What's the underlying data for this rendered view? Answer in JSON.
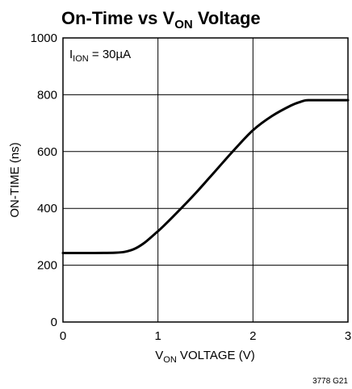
{
  "chart_data": {
    "type": "line",
    "title_main": "On-Time vs V",
    "title_sub": "ON",
    "title_tail": " Voltage",
    "xlabel_main": "V",
    "xlabel_sub": "ON",
    "xlabel_tail": " VOLTAGE (V)",
    "ylabel": "ON-TIME (ns)",
    "annotation_main": "I",
    "annotation_sub": "ION",
    "annotation_tail": " = 30µA",
    "figure_code": "3778 G21",
    "xlim": [
      0,
      3
    ],
    "ylim": [
      0,
      1000
    ],
    "xticks": [
      "0",
      "1",
      "2",
      "3"
    ],
    "yticks": [
      "0",
      "200",
      "400",
      "600",
      "800",
      "1000"
    ],
    "grid": true,
    "series": [
      {
        "x": [
          0,
          0.3,
          0.55,
          0.65,
          0.75,
          0.85,
          0.95,
          1.05,
          1.2,
          1.4,
          1.6,
          1.8,
          2.0,
          2.2,
          2.4,
          2.5,
          2.55,
          2.6,
          2.8,
          3.0
        ],
        "y": [
          243,
          243,
          244,
          247,
          257,
          277,
          305,
          335,
          385,
          455,
          530,
          605,
          675,
          725,
          762,
          775,
          780,
          781,
          781,
          781
        ]
      }
    ]
  }
}
